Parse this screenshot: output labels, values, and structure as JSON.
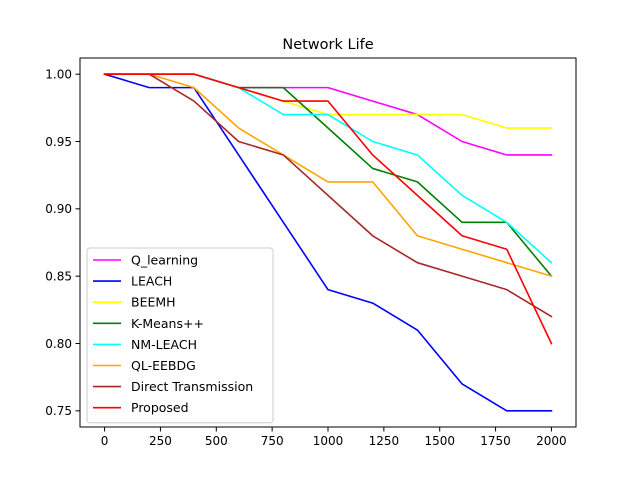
{
  "chart_data": {
    "type": "line",
    "title": "Network Life",
    "xlabel": "",
    "ylabel": "",
    "xlim": [
      -110,
      2110
    ],
    "ylim": [
      0.738,
      1.012
    ],
    "x_ticks": [
      0,
      250,
      500,
      750,
      1000,
      1250,
      1500,
      1750,
      2000
    ],
    "x_tick_labels": [
      "0",
      "250",
      "500",
      "750",
      "1000",
      "1250",
      "1500",
      "1750",
      "2000"
    ],
    "y_ticks": [
      0.75,
      0.8,
      0.85,
      0.9,
      0.95,
      1.0
    ],
    "y_tick_labels": [
      "0.75",
      "0.80",
      "0.85",
      "0.90",
      "0.95",
      "1.00"
    ],
    "grid": false,
    "legend_position": "lower-left",
    "x": [
      0,
      200,
      400,
      600,
      800,
      1000,
      1200,
      1400,
      1600,
      1800,
      2000
    ],
    "series": [
      {
        "name": "Q_learning",
        "color": "#ff00ff",
        "values": [
          1.0,
          1.0,
          1.0,
          0.99,
          0.99,
          0.99,
          0.98,
          0.97,
          0.95,
          0.94,
          0.94
        ]
      },
      {
        "name": "LEACH",
        "color": "#0000ff",
        "values": [
          1.0,
          0.99,
          0.99,
          0.94,
          0.89,
          0.84,
          0.83,
          0.81,
          0.77,
          0.75,
          0.75
        ]
      },
      {
        "name": "BEEMH",
        "color": "#ffff00",
        "values": [
          1.0,
          1.0,
          1.0,
          0.99,
          0.98,
          0.97,
          0.97,
          0.97,
          0.97,
          0.96,
          0.96
        ]
      },
      {
        "name": "K-Means++",
        "color": "#008000",
        "values": [
          1.0,
          1.0,
          1.0,
          0.99,
          0.99,
          0.96,
          0.93,
          0.92,
          0.89,
          0.89,
          0.85
        ]
      },
      {
        "name": "NM-LEACH",
        "color": "#00ffff",
        "values": [
          1.0,
          1.0,
          1.0,
          0.99,
          0.97,
          0.97,
          0.95,
          0.94,
          0.91,
          0.89,
          0.86
        ]
      },
      {
        "name": "QL-EEBDG",
        "color": "#ffa500",
        "values": [
          1.0,
          1.0,
          0.99,
          0.96,
          0.94,
          0.92,
          0.92,
          0.88,
          0.87,
          0.86,
          0.85
        ]
      },
      {
        "name": "Direct Transmission",
        "color": "#a52a2a",
        "values": [
          1.0,
          1.0,
          0.98,
          0.95,
          0.94,
          0.91,
          0.88,
          0.86,
          0.85,
          0.84,
          0.82
        ]
      },
      {
        "name": "Proposed",
        "color": "#ff0000",
        "values": [
          1.0,
          1.0,
          1.0,
          0.99,
          0.98,
          0.98,
          0.94,
          0.91,
          0.88,
          0.87,
          0.8
        ]
      }
    ]
  }
}
